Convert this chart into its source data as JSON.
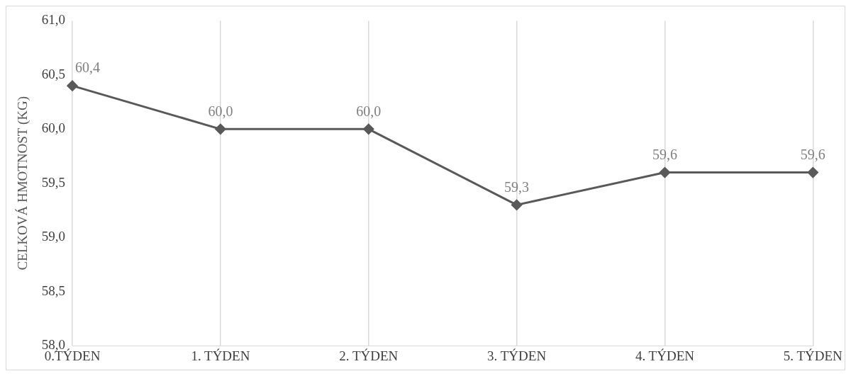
{
  "chart_data": {
    "type": "line",
    "ylabel": "CELKOVÁ HMOTNOST (KG)",
    "categories": [
      "0.TÝDEN",
      "1. TÝDEN",
      "2. TÝDEN",
      "3. TÝDEN",
      "4. TÝDEN",
      "5. TÝDEN"
    ],
    "series": [
      {
        "color": "#595959",
        "values": [
          60.4,
          60.0,
          60.0,
          59.3,
          59.6,
          59.6
        ],
        "value_labels": [
          "60,4",
          "60,0",
          "60,0",
          "59,3",
          "59,6",
          "59,6"
        ]
      }
    ],
    "ylim": [
      58,
      61
    ],
    "yticks": [
      {
        "value": 58,
        "label": "58,0"
      },
      {
        "value": 58.5,
        "label": "58,5"
      },
      {
        "value": 59,
        "label": "59,0"
      },
      {
        "value": 59.5,
        "label": "59,5"
      },
      {
        "value": 60,
        "label": "60,0"
      },
      {
        "value": 60.5,
        "label": "60,5"
      },
      {
        "value": 61,
        "label": "61,0"
      }
    ],
    "grid": "x",
    "marker": "diamond",
    "line_style": "solid",
    "legend": false
  }
}
